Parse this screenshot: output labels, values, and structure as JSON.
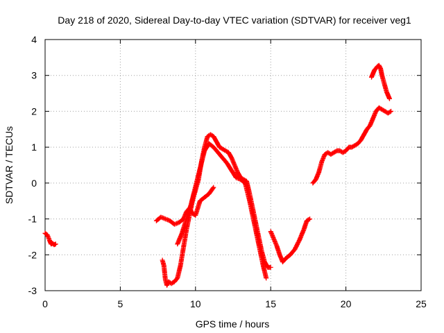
{
  "chart_data": {
    "type": "scatter",
    "title": "Day 218 of 2020, Sidereal Day-to-day VTEC variation (SDTVAR) for receiver veg1",
    "xlabel": "GPS time / hours",
    "ylabel": "SDTVAR / TECUs",
    "xlim": [
      0,
      25
    ],
    "ylim": [
      -3,
      4
    ],
    "xticks": [
      0,
      5,
      10,
      15,
      20,
      25
    ],
    "yticks": [
      -3,
      -2,
      -1,
      0,
      1,
      2,
      3,
      4
    ],
    "grid": true,
    "marker": "+",
    "color": "#ff0000",
    "segments": [
      {
        "x": [
          0.0,
          0.15,
          0.3,
          0.4,
          0.5,
          0.6,
          0.7
        ],
        "y": [
          -1.4,
          -1.45,
          -1.6,
          -1.7,
          -1.68,
          -1.72,
          -1.7
        ]
      },
      {
        "x": [
          7.4,
          7.7,
          8.0,
          8.3,
          8.6,
          8.9,
          9.2,
          9.4,
          9.6,
          9.8,
          10.0,
          10.3,
          10.6,
          10.9,
          11.2
        ],
        "y": [
          -1.05,
          -0.95,
          -1.0,
          -1.05,
          -1.15,
          -1.1,
          -1.0,
          -0.8,
          -0.7,
          -0.85,
          -0.9,
          -0.5,
          -0.4,
          -0.3,
          -0.12
        ]
      },
      {
        "x": [
          7.8,
          7.9,
          8.0,
          8.1,
          8.2,
          8.4,
          8.6,
          8.8,
          9.0,
          9.2,
          9.4,
          9.6,
          9.8,
          10.0,
          10.2,
          10.4,
          10.6,
          10.8,
          11.0,
          11.2,
          11.4,
          11.6,
          11.8,
          12.0,
          12.2,
          12.4,
          12.6,
          12.8,
          13.0,
          13.2,
          13.4,
          13.6,
          13.8,
          14.0,
          14.2,
          14.4,
          14.6,
          14.8,
          15.0
        ],
        "y": [
          -2.15,
          -2.3,
          -2.7,
          -2.85,
          -2.75,
          -2.8,
          -2.75,
          -2.65,
          -2.3,
          -1.8,
          -1.3,
          -0.9,
          -0.5,
          -0.2,
          0.1,
          0.6,
          1.0,
          1.3,
          1.35,
          1.3,
          1.15,
          1.0,
          0.95,
          0.9,
          0.85,
          0.7,
          0.5,
          0.3,
          0.15,
          0.1,
          0.05,
          -0.3,
          -0.7,
          -1.1,
          -1.5,
          -1.9,
          -2.2,
          -2.35,
          -2.35
        ]
      },
      {
        "x": [
          8.8,
          9.1,
          9.4,
          9.7,
          10.0,
          10.3,
          10.6,
          10.9,
          11.2,
          11.5,
          11.8,
          12.1,
          12.4,
          12.7,
          13.0,
          13.3,
          13.6,
          13.9,
          14.2,
          14.5,
          14.7
        ],
        "y": [
          -1.7,
          -1.4,
          -1.0,
          -0.6,
          -0.1,
          0.4,
          0.9,
          1.1,
          1.0,
          0.85,
          0.7,
          0.55,
          0.35,
          0.15,
          0.1,
          0.0,
          -0.5,
          -1.1,
          -1.7,
          -2.3,
          -2.65
        ]
      },
      {
        "x": [
          15.0,
          15.2,
          15.4,
          15.6,
          15.8,
          16.0,
          16.3,
          16.6,
          16.9,
          17.2,
          17.4,
          17.6
        ],
        "y": [
          -1.35,
          -1.55,
          -1.75,
          -2.0,
          -2.2,
          -2.1,
          -2.0,
          -1.85,
          -1.6,
          -1.3,
          -1.05,
          -1.0
        ]
      },
      {
        "x": [
          17.8,
          18.0,
          18.2,
          18.4,
          18.6,
          18.8,
          19.0,
          19.2,
          19.4,
          19.6,
          19.8,
          20.0,
          20.2,
          20.4,
          20.6,
          20.8,
          21.0,
          21.2,
          21.4,
          21.6,
          21.8,
          22.0,
          22.2,
          22.4,
          22.6,
          22.8,
          23.0
        ],
        "y": [
          0.0,
          0.1,
          0.3,
          0.6,
          0.8,
          0.85,
          0.8,
          0.85,
          0.9,
          0.9,
          0.85,
          0.9,
          1.0,
          1.0,
          1.05,
          1.1,
          1.2,
          1.35,
          1.5,
          1.6,
          1.8,
          2.0,
          2.1,
          2.05,
          2.0,
          1.95,
          2.0
        ]
      },
      {
        "x": [
          21.7,
          21.8,
          21.9,
          22.0,
          22.1,
          22.2,
          22.3,
          22.4,
          22.5,
          22.6,
          22.7,
          22.8,
          22.9
        ],
        "y": [
          2.95,
          3.05,
          3.15,
          3.2,
          3.25,
          3.28,
          3.2,
          3.0,
          2.85,
          2.7,
          2.55,
          2.45,
          2.35
        ]
      }
    ]
  }
}
